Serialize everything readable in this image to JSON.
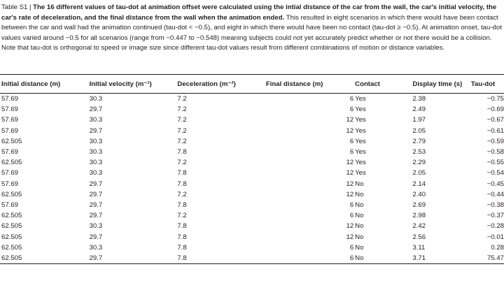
{
  "caption": {
    "label": "Table S1 | ",
    "bold_text": "The 16 different values of tau-dot at animation offset were calculated using the intial distance of the car from the wall, the car's initial velocity, the car's rate of deceleration, and the final distance from the wall when the animation ended.",
    "text": " This resulted in eight scenarios in which there would have been contact between the car and wall had the animation continued (tau-dot < −0.5), and eight in which there would have been no contact (tau-dot ≥ −0.5). At animation onset, tau-dot values varied around −0.5 for all scenarios (range from −0.447 to −0.548) meaning subjects could not yet accurately predict whether or not there would be a collision. Note that tau-dot is orthogonal to speed or image size since different tau-dot values result from different combinations of motion or distance variables."
  },
  "table": {
    "headers": [
      "Initial distance (m)",
      "Initial velocity (m⁻¹)",
      "Deceleration (m⁻²)",
      "Final distance (m)",
      "Contact",
      "Display time (s)",
      "Tau-dot"
    ],
    "rows": [
      [
        "57.69",
        "30.3",
        "7.2",
        "6",
        "Yes",
        "2.38",
        "−0.75"
      ],
      [
        "57.69",
        "29.7",
        "7.2",
        "6",
        "Yes",
        "2.49",
        "−0.69"
      ],
      [
        "57.69",
        "30.3",
        "7.2",
        "12",
        "Yes",
        "1.97",
        "−0.67"
      ],
      [
        "57.69",
        "29.7",
        "7.2",
        "12",
        "Yes",
        "2.05",
        "−0.61"
      ],
      [
        "62.505",
        "30.3",
        "7.2",
        "6",
        "Yes",
        "2.79",
        "−0.59"
      ],
      [
        "57.69",
        "30.3",
        "7.8",
        "6",
        "Yes",
        "2.53",
        "−0.58"
      ],
      [
        "62.505",
        "30.3",
        "7.2",
        "12",
        "Yes",
        "2.29",
        "−0.55"
      ],
      [
        "57.69",
        "30.3",
        "7.8",
        "12",
        "Yes",
        "2.05",
        "−0.54"
      ],
      [
        "57.69",
        "29.7",
        "7.8",
        "12",
        "No",
        "2.14",
        "−0.45"
      ],
      [
        "62.505",
        "29.7",
        "7.2",
        "12",
        "No",
        "2.40",
        "−0.44"
      ],
      [
        "57.69",
        "29.7",
        "7.8",
        "6",
        "No",
        "2.69",
        "−0.38"
      ],
      [
        "62.505",
        "29.7",
        "7.2",
        "6",
        "No",
        "2.98",
        "−0.37"
      ],
      [
        "62.505",
        "30.3",
        "7.8",
        "12",
        "No",
        "2.42",
        "−0.28"
      ],
      [
        "62.505",
        "29.7",
        "7.8",
        "12",
        "No",
        "2.56",
        "−0.01"
      ],
      [
        "62.505",
        "30.3",
        "7.8",
        "6",
        "No",
        "3.11",
        "0.28"
      ],
      [
        "62.505",
        "29.7",
        "7.8",
        "6",
        "No",
        "3.71",
        "75.47"
      ]
    ]
  }
}
